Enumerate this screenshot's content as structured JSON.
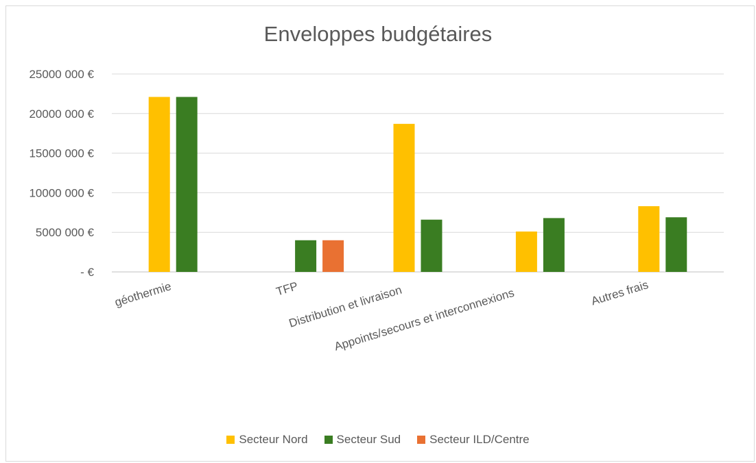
{
  "chart_data": {
    "type": "bar",
    "title": "Enveloppes budgétaires",
    "categories": [
      "géothermie",
      "TFP",
      "Distribution et livraison",
      "Appoints/secours et interconnexions",
      "Autres frais"
    ],
    "series": [
      {
        "name": "Secteur Nord",
        "color": "#FFC000",
        "values": [
          22100000,
          0,
          18700000,
          5100000,
          8300000
        ]
      },
      {
        "name": "Secteur Sud",
        "color": "#3A7D22",
        "values": [
          22100000,
          4000000,
          6600000,
          6800000,
          6900000
        ]
      },
      {
        "name": "Secteur ILD/Centre",
        "color": "#E97132",
        "values": [
          0,
          4000000,
          0,
          0,
          0
        ]
      }
    ],
    "yticks": [
      0,
      5000000,
      10000000,
      15000000,
      20000000,
      25000000
    ],
    "ytick_labels": [
      "-  €",
      "5000 000 €",
      "10000 000 €",
      "15000 000 €",
      "20000 000 €",
      "25000 000 €"
    ],
    "ylim": [
      0,
      25000000
    ],
    "grid": true,
    "legend_position": "bottom"
  }
}
